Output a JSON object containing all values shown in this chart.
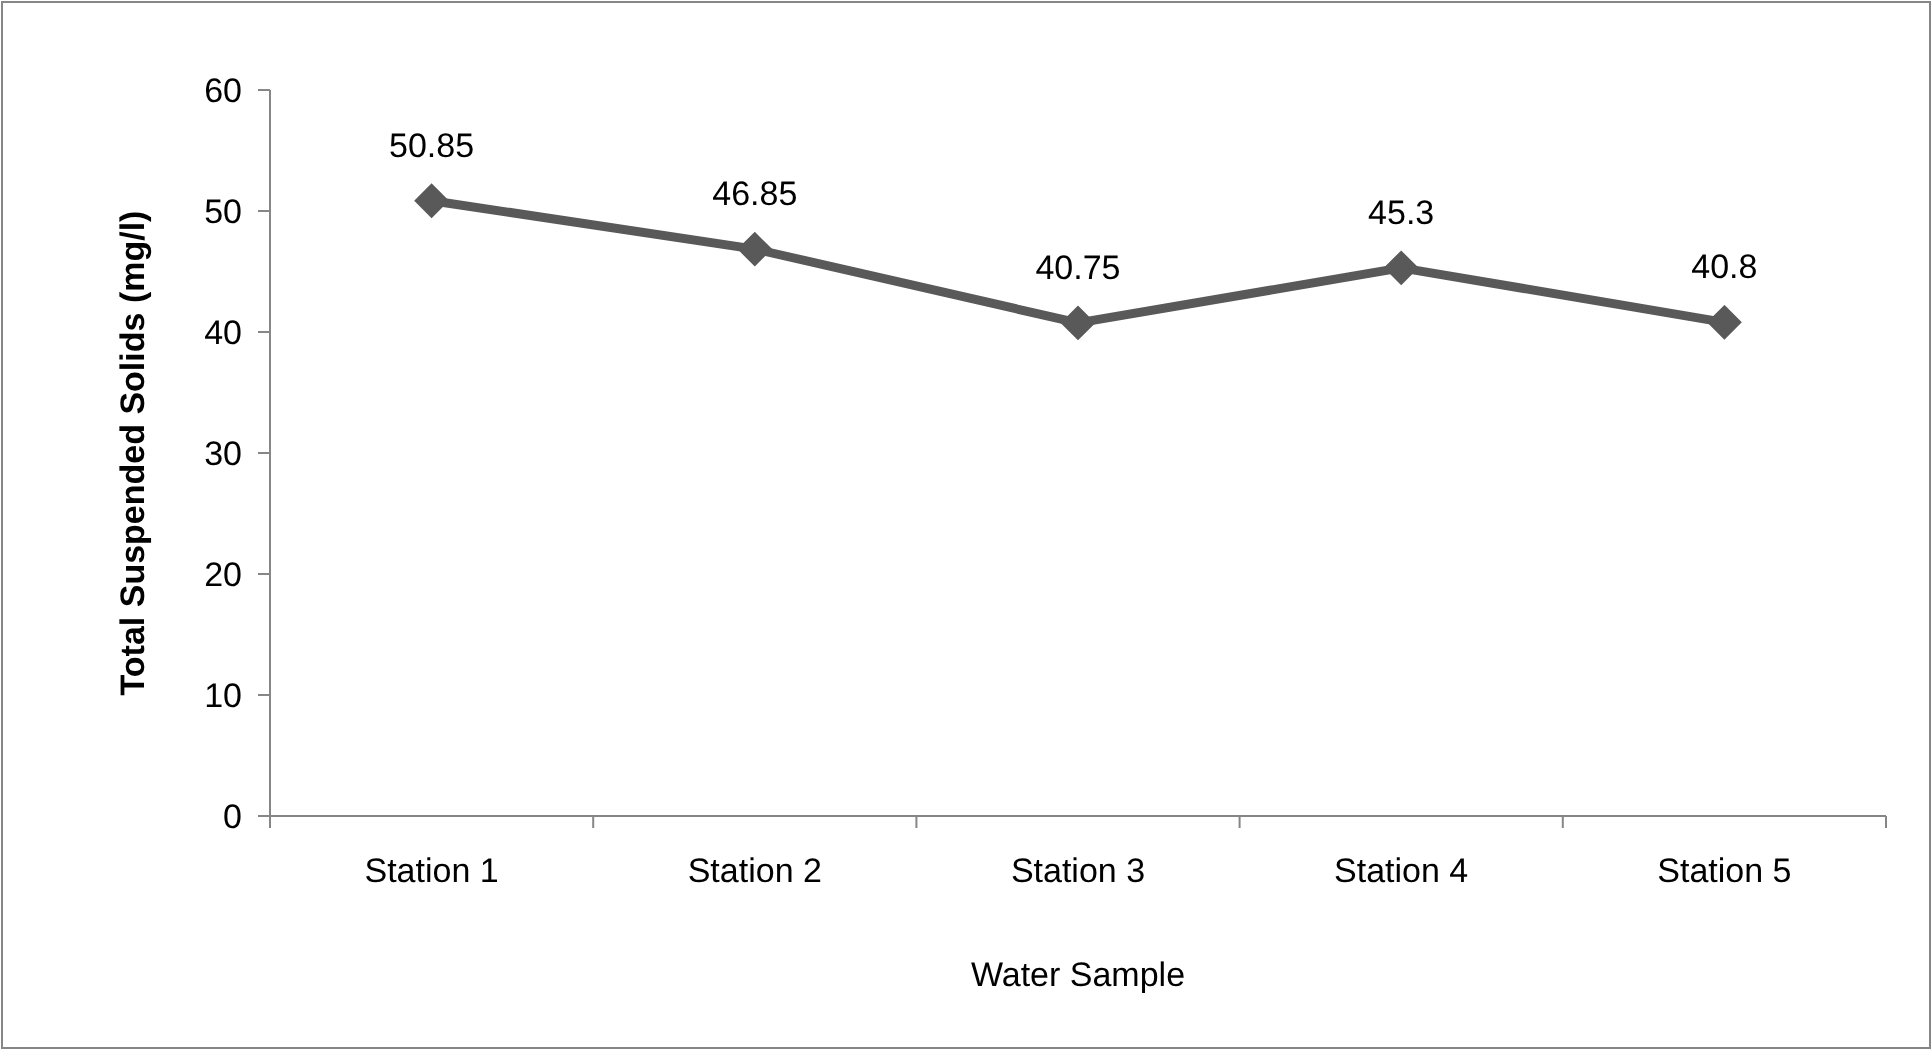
{
  "chart_data": {
    "type": "line",
    "xlabel": "Water Sample",
    "ylabel": "Total Suspended Solids (mg/l)",
    "categories": [
      "Station 1",
      "Station 2",
      "Station 3",
      "Station 4",
      "Station 5"
    ],
    "series": [
      {
        "color": "#595959",
        "values": [
          50.85,
          46.85,
          40.75,
          45.3,
          40.8
        ]
      }
    ],
    "ylim": [
      0,
      60
    ],
    "yticks": [
      0,
      10,
      20,
      30,
      40,
      50,
      60
    ],
    "grid": false,
    "marker": "diamond",
    "line_style": "solid",
    "data_labels": true
  }
}
